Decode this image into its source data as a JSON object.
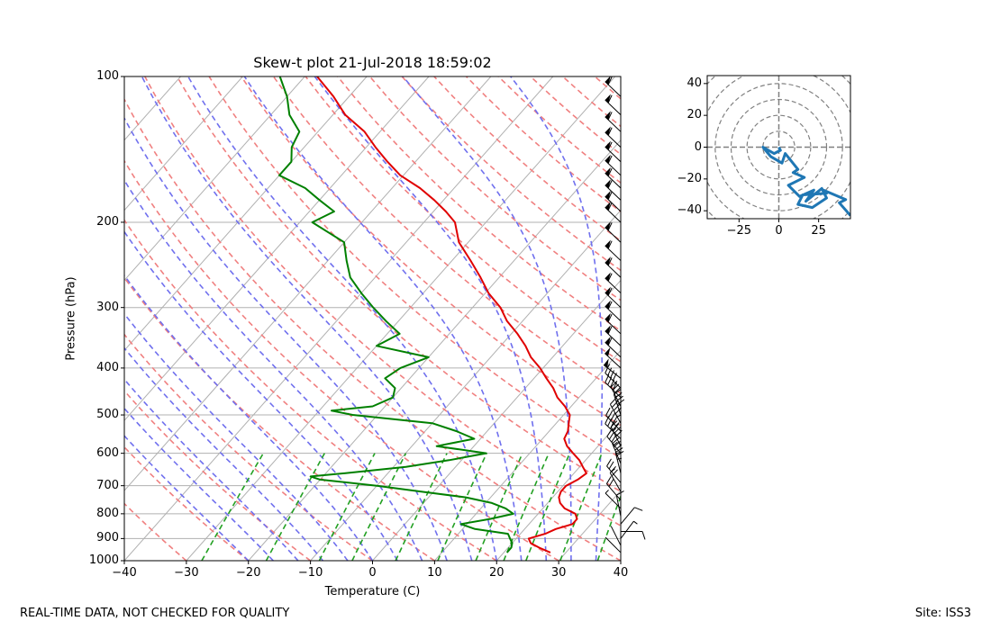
{
  "title": "Skew-t plot 21-Jul-2018 18:59:02",
  "footer": {
    "left": "REAL-TIME DATA, NOT CHECKED FOR QUALITY",
    "right": "Site: ISS3"
  },
  "chart_data": [
    {
      "type": "line",
      "subtype": "skew-t log-p diagram",
      "title": "Skew-t plot 21-Jul-2018 18:59:02",
      "xlabel": "Temperature (C)",
      "ylabel": "Pressure (hPa)",
      "xlim": [
        -40,
        40
      ],
      "ylim": [
        1000,
        100
      ],
      "xticks": [
        -40,
        -30,
        -20,
        -10,
        0,
        10,
        20,
        30,
        40
      ],
      "yticks": [
        1000,
        900,
        800,
        700,
        600,
        500,
        400,
        300,
        200,
        100
      ],
      "xtick_labels": [
        "−40",
        "−30",
        "−20",
        "−10",
        "0",
        "10",
        "20",
        "30",
        "40"
      ],
      "ytick_labels": [
        "1000",
        "900",
        "800",
        "700",
        "600",
        "500",
        "400",
        "300",
        "200",
        "100"
      ],
      "grid": true,
      "colors": {
        "temperature": "#e00000",
        "dewpoint": "#008000",
        "dry_adiabats": "#f08080",
        "moist_adiabats": "#7070ee",
        "mixing_ratio": "#22a022",
        "isotherms": "#b0b0b0",
        "barbs": "#000000"
      },
      "series": [
        {
          "name": "Temperature",
          "pressure": [
            962,
            940,
            920,
            900,
            880,
            860,
            840,
            820,
            800,
            780,
            760,
            740,
            720,
            700,
            680,
            660,
            640,
            620,
            600,
            580,
            560,
            540,
            520,
            500,
            480,
            460,
            440,
            420,
            400,
            380,
            360,
            340,
            320,
            300,
            280,
            260,
            240,
            220,
            200,
            190,
            180,
            170,
            160,
            150,
            140,
            130,
            120,
            110,
            100
          ],
          "values": [
            27.5,
            25.0,
            23.0,
            22.0,
            24.0,
            25.0,
            27.0,
            27.0,
            26.0,
            23.5,
            22.0,
            21.0,
            20.5,
            20.5,
            21.5,
            22.0,
            20.5,
            19.0,
            17.0,
            15.0,
            13.5,
            13.0,
            12.0,
            11.0,
            9.0,
            6.5,
            4.5,
            2.0,
            -0.5,
            -3.5,
            -6.0,
            -9.0,
            -12.5,
            -15.5,
            -19.5,
            -23.0,
            -27.0,
            -31.5,
            -35.0,
            -38.0,
            -41.5,
            -45.5,
            -50.5,
            -54.5,
            -58.5,
            -62.5,
            -68.0,
            -72.5,
            -78.0
          ]
        },
        {
          "name": "Dewpoint",
          "pressure": [
            962,
            940,
            920,
            900,
            880,
            860,
            840,
            820,
            800,
            780,
            760,
            740,
            720,
            700,
            680,
            670,
            660,
            640,
            620,
            600,
            580,
            560,
            540,
            520,
            500,
            490,
            480,
            460,
            440,
            420,
            400,
            380,
            360,
            340,
            320,
            300,
            280,
            260,
            240,
            220,
            200,
            190,
            180,
            170,
            160,
            150,
            140,
            130,
            120,
            110,
            100
          ],
          "values": [
            20.5,
            20.5,
            20.0,
            19.0,
            18.0,
            12.0,
            9.0,
            13.0,
            16.0,
            14.0,
            11.0,
            6.0,
            -2.0,
            -10.0,
            -20.0,
            -22.0,
            -17.0,
            -8.0,
            -2.0,
            3.0,
            -6.0,
            -1.0,
            -5.0,
            -10.0,
            -24.0,
            -28.0,
            -22.0,
            -20.0,
            -21.0,
            -24.0,
            -23.0,
            -20.0,
            -30.0,
            -28.0,
            -32.0,
            -36.0,
            -40.0,
            -44.0,
            -47.0,
            -50.0,
            -58.0,
            -56.0,
            -60.0,
            -64.0,
            -70.0,
            -70.0,
            -72.0,
            -73.0,
            -77.0,
            -80.0,
            -84.0
          ]
        }
      ],
      "wind_barbs_levels_hpa": [
        962,
        930,
        900,
        870,
        840,
        810,
        780,
        750,
        720,
        690,
        660,
        630,
        600,
        580,
        560,
        540,
        520,
        500,
        480,
        460,
        440,
        420,
        400,
        380,
        360,
        340,
        320,
        300,
        280,
        260,
        240,
        220,
        200,
        190,
        180,
        170,
        160,
        150,
        140,
        130,
        120,
        110
      ]
    },
    {
      "type": "line",
      "subtype": "hodograph",
      "xlim": [
        -45,
        45
      ],
      "ylim": [
        -45,
        45
      ],
      "xticks": [
        -25,
        0,
        25
      ],
      "yticks": [
        -40,
        -20,
        0,
        20,
        40
      ],
      "xtick_labels": [
        "−25",
        "0",
        "25"
      ],
      "ytick_labels": [
        "−40",
        "−20",
        "0",
        "20",
        "40"
      ],
      "rings": [
        10,
        20,
        30,
        40,
        50,
        60
      ],
      "color": "#1f77b4",
      "series": [
        {
          "name": "wind",
          "u": [
            0,
            1,
            -3,
            -10,
            -5,
            2,
            4,
            12,
            9,
            16,
            6,
            13,
            22,
            17,
            27,
            30,
            21,
            12,
            15,
            30,
            28,
            42,
            38,
            45
          ],
          "v": [
            0,
            -2,
            -4,
            0,
            -6,
            -10,
            -4,
            -14,
            -16,
            -19,
            -24,
            -31,
            -27,
            -34,
            -26,
            -32,
            -38,
            -36,
            -30,
            -29,
            -27,
            -33,
            -35,
            -43
          ]
        }
      ]
    }
  ]
}
